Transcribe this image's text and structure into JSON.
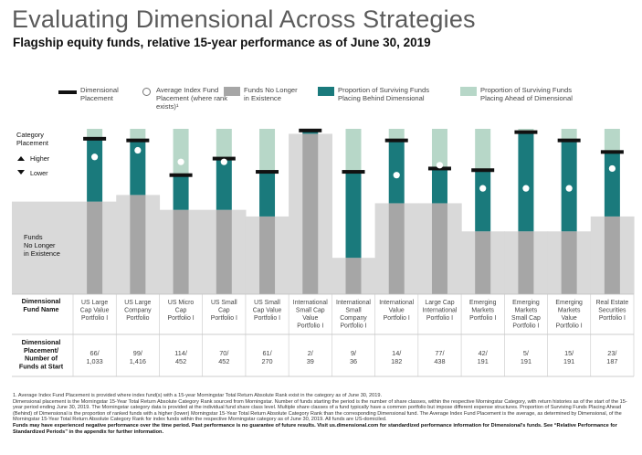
{
  "header": {
    "title": "Evaluating Dimensional Across Strategies",
    "subtitle": "Flagship equity funds, relative 15-year performance as of June 30, 2019"
  },
  "legend": [
    {
      "key": "dimensional_placement",
      "label": "Dimensional Placement"
    },
    {
      "key": "average_index",
      "label": "Average Index Fund Placement (where rank exists)¹"
    },
    {
      "key": "no_longer",
      "label": "Funds No Longer in Existence"
    },
    {
      "key": "behind",
      "label": "Proportion of Surviving Funds Placing Behind Dimensional"
    },
    {
      "key": "ahead",
      "label": "Proportion of Surviving Funds Placing Ahead of Dimensional"
    }
  ],
  "side_labels": {
    "category_placement": "Category Placement",
    "higher": "Higher",
    "lower": "Lower",
    "funds_no_longer": "Funds No Longer in Existence",
    "fund_name_header": "Dimensional Fund Name",
    "placement_header": "Dimensional Placement/ Number of Funds at Start"
  },
  "colors": {
    "behind": "#1a7a7c",
    "ahead": "#b7d7c8",
    "no_longer": "#a6a6a6",
    "no_longer_bg": "#d9d9d9",
    "dimensional_mark": "#111111",
    "index_marker": "#ffffff"
  },
  "chart_data": {
    "type": "bar",
    "title": "Flagship equity funds, relative 15-year performance as of June 30, 2019",
    "ylabel": "Category Placement",
    "y_direction": "top = Higher, bottom = Lower",
    "ylim": [
      0,
      1
    ],
    "categories": [
      "US Large Cap Value Portfolio I",
      "US Large Company Portfolio",
      "US Micro Cap Portfolio I",
      "US Small Cap Portfolio I",
      "US Small Cap Value Portfolio I",
      "International Small Cap Value Portfolio I",
      "International Small Company Portfolio I",
      "International Value Portfolio I",
      "Large Cap International Portfolio I",
      "Emerging Markets Portfolio I",
      "Emerging Markets Small Cap Portfolio I",
      "Emerging Markets Value Portfolio I",
      "Real Estate Securities Portfolio I"
    ],
    "fund_names": [
      [
        "US Large",
        "Cap Value",
        "Portfolio I"
      ],
      [
        "US Large",
        "Company",
        "Portfolio"
      ],
      [
        "US Micro",
        "Cap",
        "Portfolio I"
      ],
      [
        "US Small",
        "Cap",
        "Portfolio I"
      ],
      [
        "US Small",
        "Cap Value",
        "Portfolio I"
      ],
      [
        "International",
        "Small Cap",
        "Value",
        "Portfolio I"
      ],
      [
        "International",
        "Small",
        "Company",
        "Portfolio I"
      ],
      [
        "International",
        "Value",
        "Portfolio I"
      ],
      [
        "Large Cap",
        "International",
        "Portfolio I"
      ],
      [
        "Emerging",
        "Markets",
        "Portfolio I"
      ],
      [
        "Emerging",
        "Markets",
        "Small Cap",
        "Portfolio I"
      ],
      [
        "Emerging",
        "Markets",
        "Value",
        "Portfolio I"
      ],
      [
        "Real Estate",
        "Securities",
        "Portfolio I"
      ]
    ],
    "placement_labels": [
      [
        "66/",
        "1,033"
      ],
      [
        "99/",
        "1,416"
      ],
      [
        "114/",
        "452"
      ],
      [
        "70/",
        "452"
      ],
      [
        "61/",
        "270"
      ],
      [
        "2/",
        "39"
      ],
      [
        "9/",
        "36"
      ],
      [
        "14/",
        "182"
      ],
      [
        "77/",
        "438"
      ],
      [
        "42/",
        "191"
      ],
      [
        "5/",
        "191"
      ],
      [
        "15/",
        "191"
      ],
      [
        "23/",
        "187"
      ]
    ],
    "series": [
      {
        "name": "Funds No Longer in Existence (share of funds at start)",
        "values": [
          0.56,
          0.6,
          0.51,
          0.51,
          0.47,
          0.97,
          0.22,
          0.55,
          0.55,
          0.38,
          0.38,
          0.38,
          0.47
        ]
      },
      {
        "name": "Dimensional Placement (position from bottom)",
        "values": [
          0.94,
          0.93,
          0.72,
          0.82,
          0.74,
          0.99,
          0.74,
          0.93,
          0.76,
          0.75,
          0.98,
          0.93,
          0.86
        ]
      },
      {
        "name": "Average Index Fund Placement (position from bottom)",
        "values": [
          0.83,
          0.87,
          0.8,
          0.8,
          null,
          null,
          null,
          0.72,
          0.78,
          0.64,
          0.64,
          0.64,
          0.76
        ]
      }
    ]
  },
  "footnote": {
    "line1": "1. Average Index Fund Placement is provided where index fund(s) with a 15-year Morningstar Total Return Absolute Rank exist in the category as of June 30, 2019.",
    "line2": "Dimensional placement is the Morningstar 15-Year Total Return Absolute Category Rank sourced from Morningstar. Number of funds starting the period is the number of share classes, within the respective Morningstar Category, with return histories as of the start of the 15-year period ending June 30, 2019. The Morningstar category data is provided at the individual fund share class level. Multiple share classes of a fund typically have a common portfolio but impose different expense structures. Proportion of Surviving Funds Placing Ahead (Behind) of Dimensional is the proportion of ranked funds with a higher (lower) Morningstar 15-Year Total Return Absolute Category Rank than the corresponding Dimensional fund. The Average Index Fund Placement is the average, as determined by Dimensional, of the Morningstar 15-Year Total Return Absolute Category Rank for index funds within the respective Morningstar category as of June 30, 2019. All funds are US-domiciled.",
    "bold": "Funds may have experienced negative performance over the time period. Past performance is no guarantee of future results. Visit us.dimensional.com for standardized performance information for Dimensional's funds. See “Relative Performance for Standardized Periods” in the appendix for further information."
  }
}
